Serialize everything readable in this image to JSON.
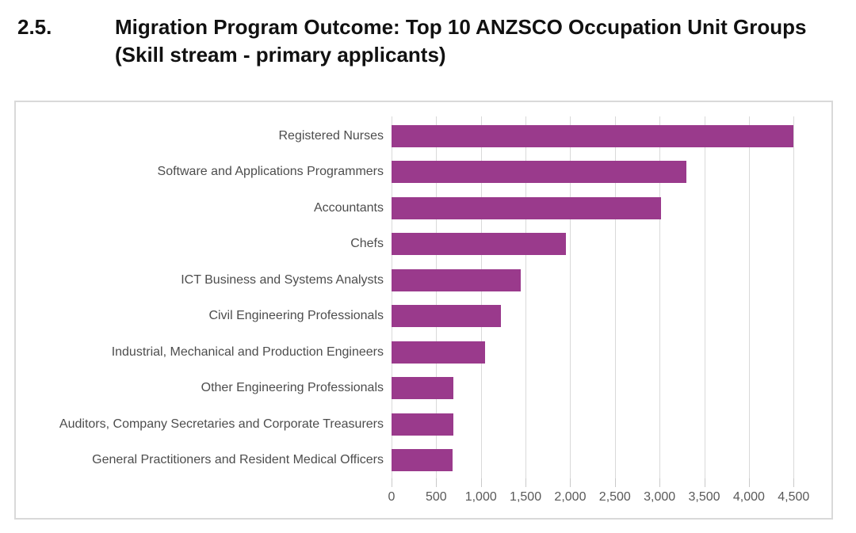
{
  "header": {
    "number": "2.5.",
    "title": "Migration Program Outcome: Top 10 ANZSCO Occupation Unit Groups (Skill stream - primary applicants)"
  },
  "colors": {
    "bar": "#9a3a8c",
    "gridline": "#d9d9d9",
    "tick": "#c9c9c9",
    "chart_border": "#d9d9d9",
    "category_text": "#4d4d4d",
    "axis_text": "#595959",
    "title_text": "#111111"
  },
  "chart_data": {
    "type": "bar",
    "orientation": "horizontal",
    "title": "Migration Program Outcome: Top 10 ANZSCO Occupation Unit Groups (Skill stream - primary applicants)",
    "xlabel": "",
    "ylabel": "",
    "categories": [
      "Registered Nurses",
      "Software and Applications Programmers",
      "Accountants",
      "Chefs",
      "ICT Business and Systems Analysts",
      "Civil Engineering Professionals",
      "Industrial, Mechanical and Production Engineers",
      "Other Engineering Professionals",
      "Auditors, Company Secretaries and Corporate Treasurers",
      "General Practitioners and Resident Medical Officers"
    ],
    "values": [
      4500,
      3300,
      3020,
      1950,
      1450,
      1220,
      1050,
      690,
      690,
      680
    ],
    "x_axis_ticks": [
      0,
      500,
      1000,
      1500,
      2000,
      2500,
      3000,
      3500,
      4000,
      4500
    ],
    "x_tick_labels": [
      "0",
      "500",
      "1,000",
      "1,500",
      "2,000",
      "2,500",
      "3,000",
      "3,500",
      "4,000",
      "4,500"
    ],
    "xlim": [
      0,
      4950
    ],
    "grid": true,
    "legend": false
  }
}
